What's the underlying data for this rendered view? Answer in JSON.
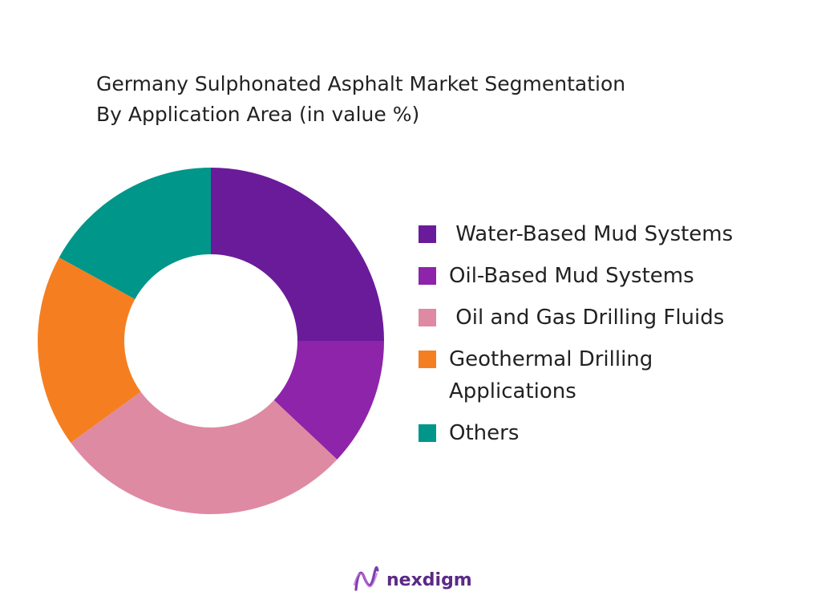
{
  "chart_data": {
    "type": "pie",
    "title_lines": [
      "Germany Sulphonated Asphalt Market Segmentation",
      "By Application Area (in value %)"
    ],
    "categories": [
      "Water-Based Mud Systems",
      "Oil-Based Mud Systems",
      "Oil and Gas Drilling Fluids",
      "Geothermal Drilling Applications",
      "Others"
    ],
    "legend_lines": [
      " Water-Based Mud Systems",
      "Oil-Based Mud Systems",
      " Oil and Gas Drilling Fluids",
      "Geothermal Drilling\nApplications",
      "Others"
    ],
    "values": [
      25,
      12,
      28,
      18,
      17
    ],
    "colors": [
      "#6a1b9a",
      "#8e24aa",
      "#de8aa2",
      "#f57f20",
      "#00968a"
    ],
    "legend_placement": "right",
    "donut": true
  },
  "brand": {
    "name": "nexdigm",
    "color": "#5b2a86"
  }
}
